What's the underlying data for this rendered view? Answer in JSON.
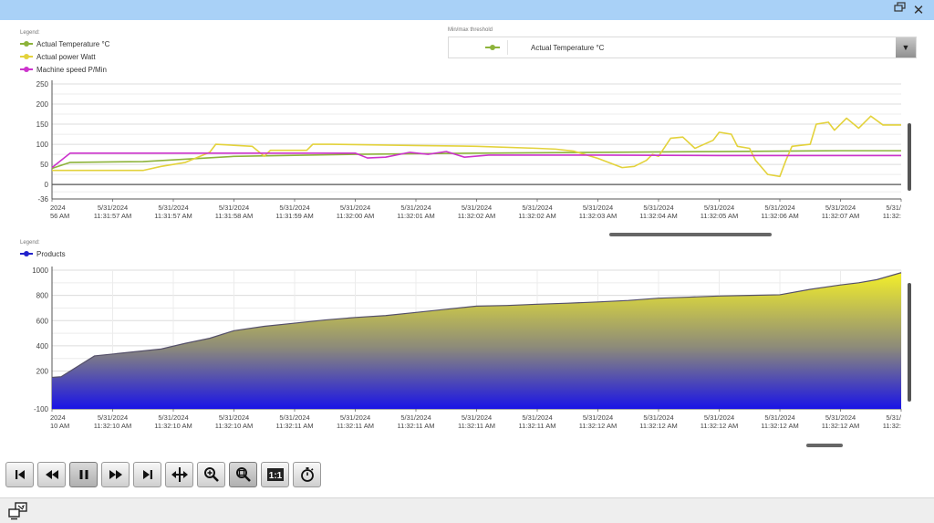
{
  "window": {
    "restore_icon": "restore-window-icon",
    "close_icon": "close-icon",
    "close_glyph": "✕"
  },
  "top_legend": {
    "caption": "Legend:",
    "items": [
      {
        "label": "Actual Temperature °C",
        "color": "#8db33a"
      },
      {
        "label": "Actual power Watt",
        "color": "#e3d23b"
      },
      {
        "label": "Machine speed P/Min",
        "color": "#cc33cc"
      }
    ]
  },
  "threshold": {
    "caption": "Min/max threshold",
    "selected": "Actual Temperature °C",
    "color": "#8db33a",
    "dropdown_glyph": "▼"
  },
  "bottom_legend": {
    "caption": "Legend:",
    "items": [
      {
        "label": "Products",
        "color": "#2222cc"
      }
    ]
  },
  "chart_data": [
    {
      "type": "line",
      "title": "",
      "ylim": [
        -36,
        250
      ],
      "y_ticks": [
        "250",
        "200",
        "150",
        "100",
        "50",
        "0",
        "-36"
      ],
      "x_tick_labels": [
        {
          "date": "2024",
          "time": "56 AM"
        },
        {
          "date": "5/31/2024",
          "time": "11:31:57 AM"
        },
        {
          "date": "5/31/2024",
          "time": "11:31:57 AM"
        },
        {
          "date": "5/31/2024",
          "time": "11:31:58 AM"
        },
        {
          "date": "5/31/2024",
          "time": "11:31:59 AM"
        },
        {
          "date": "5/31/2024",
          "time": "11:32:00 AM"
        },
        {
          "date": "5/31/2024",
          "time": "11:32:01 AM"
        },
        {
          "date": "5/31/2024",
          "time": "11:32:02 AM"
        },
        {
          "date": "5/31/2024",
          "time": "11:32:02 AM"
        },
        {
          "date": "5/31/2024",
          "time": "11:32:03 AM"
        },
        {
          "date": "5/31/2024",
          "time": "11:32:04 AM"
        },
        {
          "date": "5/31/2024",
          "time": "11:32:05 AM"
        },
        {
          "date": "5/31/2024",
          "time": "11:32:06 AM"
        },
        {
          "date": "5/31/2024",
          "time": "11:32:07 AM"
        },
        {
          "date": "5/31/",
          "time": "11:32:"
        }
      ],
      "x_range": [
        0,
        14
      ],
      "series": [
        {
          "name": "Actual Temperature °C",
          "color": "#8db33a",
          "x": [
            0,
            0.3,
            1.5,
            3,
            5,
            7,
            9,
            11,
            13,
            14
          ],
          "y": [
            40,
            55,
            57,
            70,
            75,
            78,
            80,
            82,
            84,
            84
          ]
        },
        {
          "name": "Actual power Watt",
          "color": "#e3d23b",
          "x": [
            0,
            1.3,
            1.5,
            1.8,
            2.2,
            2.6,
            2.7,
            3.3,
            3.5,
            3.6,
            4.2,
            4.3,
            4.6,
            6,
            7,
            8,
            8.3,
            8.6,
            9,
            9.4,
            9.6,
            9.8,
            9.9,
            10,
            10.2,
            10.4,
            10.6,
            10.9,
            11,
            11.2,
            11.3,
            11.5,
            11.6,
            11.8,
            12.0,
            12.1,
            12.2,
            12.5,
            12.6,
            12.8,
            12.9,
            13.1,
            13.3,
            13.5,
            13.7,
            14
          ],
          "y": [
            35,
            35,
            35,
            45,
            55,
            80,
            100,
            95,
            70,
            85,
            85,
            100,
            100,
            97,
            95,
            90,
            88,
            83,
            65,
            42,
            45,
            60,
            75,
            70,
            115,
            118,
            90,
            110,
            130,
            125,
            95,
            90,
            60,
            25,
            20,
            60,
            95,
            100,
            150,
            155,
            135,
            165,
            140,
            170,
            148,
            148
          ]
        },
        {
          "name": "Machine speed P/Min",
          "color": "#cc33cc",
          "x": [
            0,
            0.3,
            3.5,
            4.2,
            5,
            5.2,
            5.5,
            5.9,
            6.2,
            6.5,
            6.8,
            7.2,
            9,
            11,
            14
          ],
          "y": [
            42,
            78,
            78,
            78,
            78,
            66,
            68,
            80,
            75,
            82,
            68,
            73,
            73,
            72,
            72
          ]
        }
      ]
    },
    {
      "type": "area",
      "title": "",
      "ylim": [
        -100,
        1000
      ],
      "y_ticks": [
        "1000",
        "800",
        "600",
        "400",
        "200",
        "-100"
      ],
      "x_tick_labels": [
        {
          "date": "2024",
          "time": "10 AM"
        },
        {
          "date": "5/31/2024",
          "time": "11:32:10 AM"
        },
        {
          "date": "5/31/2024",
          "time": "11:32:10 AM"
        },
        {
          "date": "5/31/2024",
          "time": "11:32:10 AM"
        },
        {
          "date": "5/31/2024",
          "time": "11:32:11 AM"
        },
        {
          "date": "5/31/2024",
          "time": "11:32:11 AM"
        },
        {
          "date": "5/31/2024",
          "time": "11:32:11 AM"
        },
        {
          "date": "5/31/2024",
          "time": "11:32:11 AM"
        },
        {
          "date": "5/31/2024",
          "time": "11:32:11 AM"
        },
        {
          "date": "5/31/2024",
          "time": "11:32:12 AM"
        },
        {
          "date": "5/31/2024",
          "time": "11:32:12 AM"
        },
        {
          "date": "5/31/2024",
          "time": "11:32:12 AM"
        },
        {
          "date": "5/31/2024",
          "time": "11:32:12 AM"
        },
        {
          "date": "5/31/2024",
          "time": "11:32:12 AM"
        },
        {
          "date": "5/31/",
          "time": "11:32:"
        }
      ],
      "x_range": [
        0,
        14
      ],
      "series": [
        {
          "name": "Products",
          "color": "#2222cc",
          "fill_top": "#f3ef2a",
          "fill_bottom": "#1a14e6",
          "x": [
            0,
            0.15,
            0.7,
            1.2,
            1.8,
            2.2,
            2.6,
            3.0,
            3.5,
            4.0,
            4.5,
            5.0,
            5.5,
            6.0,
            6.5,
            7.0,
            7.5,
            8.0,
            8.5,
            9.0,
            9.5,
            10.0,
            10.5,
            11.0,
            11.5,
            12.0,
            12.5,
            13.0,
            13.3,
            13.6,
            14
          ],
          "y": [
            150,
            155,
            320,
            345,
            375,
            420,
            460,
            520,
            555,
            580,
            605,
            625,
            640,
            665,
            690,
            715,
            720,
            730,
            738,
            748,
            760,
            778,
            786,
            795,
            800,
            805,
            848,
            883,
            900,
            925,
            980
          ]
        }
      ]
    }
  ],
  "playback_toolbar": [
    {
      "name": "first-button",
      "icon": "skip-first-icon"
    },
    {
      "name": "step-back-button",
      "icon": "rewind-icon"
    },
    {
      "name": "pause-button",
      "icon": "pause-icon",
      "active": true
    },
    {
      "name": "step-forward-button",
      "icon": "fast-forward-icon"
    },
    {
      "name": "last-button",
      "icon": "skip-last-icon"
    },
    {
      "name": "ruler-button",
      "icon": "ruler-icon"
    },
    {
      "name": "zoom-area-button",
      "icon": "zoom-area-icon"
    },
    {
      "name": "zoom-time-button",
      "icon": "zoom-time-icon",
      "active": true
    },
    {
      "name": "original-view-button",
      "icon": "one-to-one-icon",
      "label": "1:1"
    },
    {
      "name": "time-select-button",
      "icon": "stopwatch-icon"
    }
  ],
  "statusbar": {
    "icon": "connection-status-icon"
  }
}
